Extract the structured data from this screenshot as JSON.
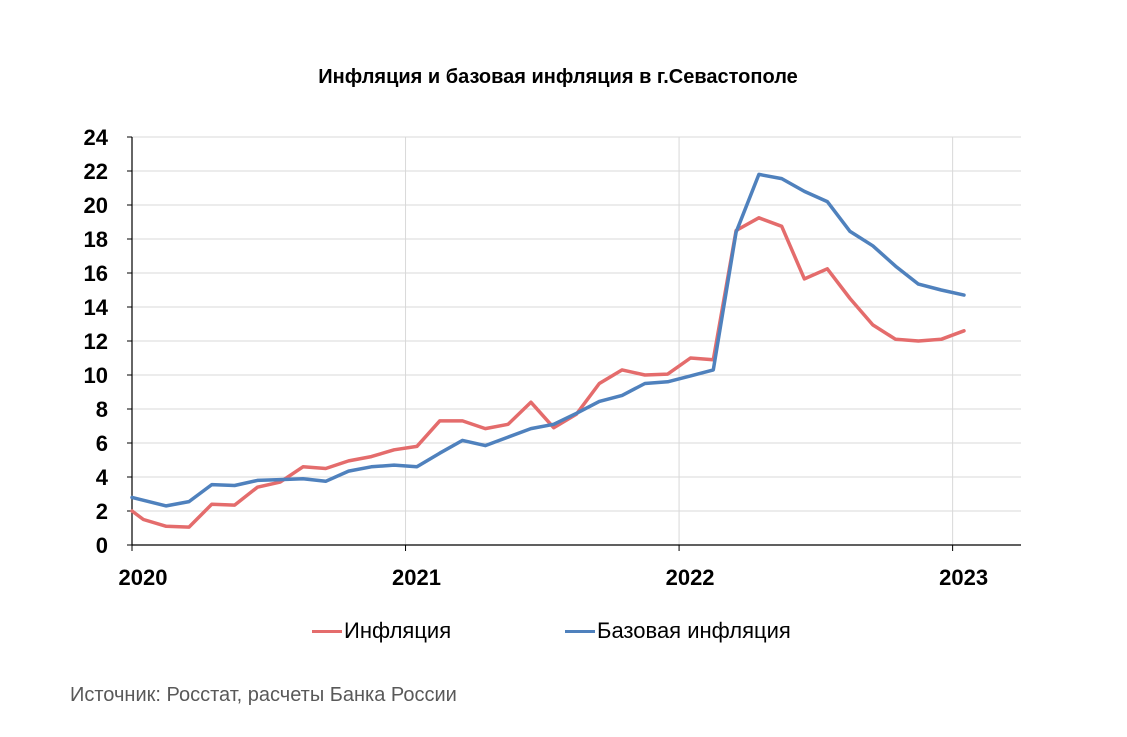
{
  "chart_data": {
    "type": "line",
    "title": "Инфляция и базовая инфляция в г.Севастополе",
    "xlabel": "",
    "ylabel": "",
    "ylim": [
      0,
      24
    ],
    "yticks": [
      "0",
      "2",
      "4",
      "6",
      "8",
      "10",
      "12",
      "14",
      "16",
      "18",
      "20",
      "22",
      "24"
    ],
    "xlim": [
      2020,
      2023.25
    ],
    "xticks": [
      "2020",
      "2021",
      "2022",
      "2023"
    ],
    "grid": true,
    "legend_position": "bottom",
    "series": [
      {
        "name": "Инфляция",
        "color": "#E46C6C",
        "x": [
          2020.0,
          2020.0417,
          2020.125,
          2020.2083,
          2020.2917,
          2020.375,
          2020.4583,
          2020.5417,
          2020.625,
          2020.7083,
          2020.7917,
          2020.875,
          2020.9583,
          2021.0417,
          2021.125,
          2021.2083,
          2021.2917,
          2021.375,
          2021.4583,
          2021.5417,
          2021.625,
          2021.7083,
          2021.7917,
          2021.875,
          2021.9583,
          2022.0417,
          2022.125,
          2022.2083,
          2022.2917,
          2022.375,
          2022.4583,
          2022.5417,
          2022.625,
          2022.7083,
          2022.7917,
          2022.875,
          2022.9583,
          2023.0417
        ],
        "values": [
          2.0,
          1.5,
          1.1,
          1.05,
          2.4,
          2.35,
          3.4,
          3.7,
          4.6,
          4.5,
          4.95,
          5.2,
          5.6,
          5.8,
          7.3,
          7.3,
          6.85,
          7.1,
          8.4,
          6.9,
          7.7,
          9.5,
          10.3,
          10.0,
          10.05,
          11.0,
          10.9,
          18.5,
          19.25,
          18.75,
          15.65,
          16.25,
          14.5,
          12.95,
          12.1,
          12.0,
          12.1,
          12.6
        ]
      },
      {
        "name": "Базовая инфляция",
        "color": "#4F81BD",
        "x": [
          2020.0,
          2020.125,
          2020.2083,
          2020.2917,
          2020.375,
          2020.4583,
          2020.5417,
          2020.625,
          2020.7083,
          2020.7917,
          2020.875,
          2020.9583,
          2021.0417,
          2021.125,
          2021.2083,
          2021.2917,
          2021.375,
          2021.4583,
          2021.5417,
          2021.625,
          2021.7083,
          2021.7917,
          2021.875,
          2021.9583,
          2022.0417,
          2022.125,
          2022.2083,
          2022.2917,
          2022.375,
          2022.4583,
          2022.5417,
          2022.625,
          2022.7083,
          2022.7917,
          2022.875,
          2022.9583,
          2023.0417
        ],
        "values": [
          2.8,
          2.3,
          2.55,
          3.55,
          3.5,
          3.8,
          3.85,
          3.9,
          3.75,
          4.35,
          4.6,
          4.7,
          4.6,
          5.4,
          6.15,
          5.85,
          6.35,
          6.85,
          7.1,
          7.75,
          8.45,
          8.8,
          9.5,
          9.6,
          9.95,
          10.3,
          18.4,
          21.8,
          21.55,
          20.8,
          20.2,
          18.45,
          17.6,
          16.4,
          15.35,
          15.0,
          14.7
        ]
      }
    ]
  },
  "source_note": "Источник: Росстат, расчеты Банка России"
}
